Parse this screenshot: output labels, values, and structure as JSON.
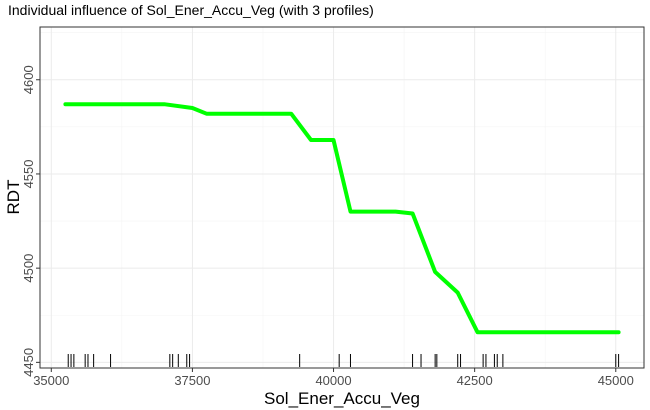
{
  "chart_data": {
    "type": "line",
    "title": "Individual influence of Sol_Ener_Accu_Veg (with 3 profiles)",
    "xlabel": "Sol_Ener_Accu_Veg",
    "ylabel": "RDT",
    "xlim": [
      34800,
      45500
    ],
    "ylim": [
      4447,
      4628
    ],
    "x_ticks": [
      35000,
      37500,
      40000,
      42500,
      45000
    ],
    "x_tick_labels": [
      "35000",
      "37500",
      "40000",
      "42500",
      "45000"
    ],
    "y_ticks": [
      4450,
      4500,
      4550,
      4600
    ],
    "y_tick_labels": [
      "4450",
      "4500",
      "4550",
      "4600"
    ],
    "grid": true,
    "series": [
      {
        "color": "#00ff00",
        "x": [
          35250,
          36000,
          37000,
          37500,
          37750,
          38500,
          39250,
          39600,
          40000,
          40300,
          40700,
          41100,
          41400,
          41800,
          42200,
          42550,
          43500,
          45050
        ],
        "y": [
          4587,
          4587,
          4587,
          4585,
          4582,
          4582,
          4582,
          4568,
          4568,
          4530,
          4530,
          4530,
          4529,
          4498,
          4487,
          4466,
          4466,
          4466
        ]
      }
    ],
    "rug_x": [
      35300,
      35350,
      35400,
      35600,
      35650,
      35750,
      36050,
      37100,
      37150,
      37250,
      37400,
      37450,
      39400,
      40100,
      40300,
      41400,
      41550,
      41800,
      41830,
      42200,
      42250,
      42650,
      42700,
      42850,
      42900,
      43000,
      45000,
      45050
    ]
  }
}
